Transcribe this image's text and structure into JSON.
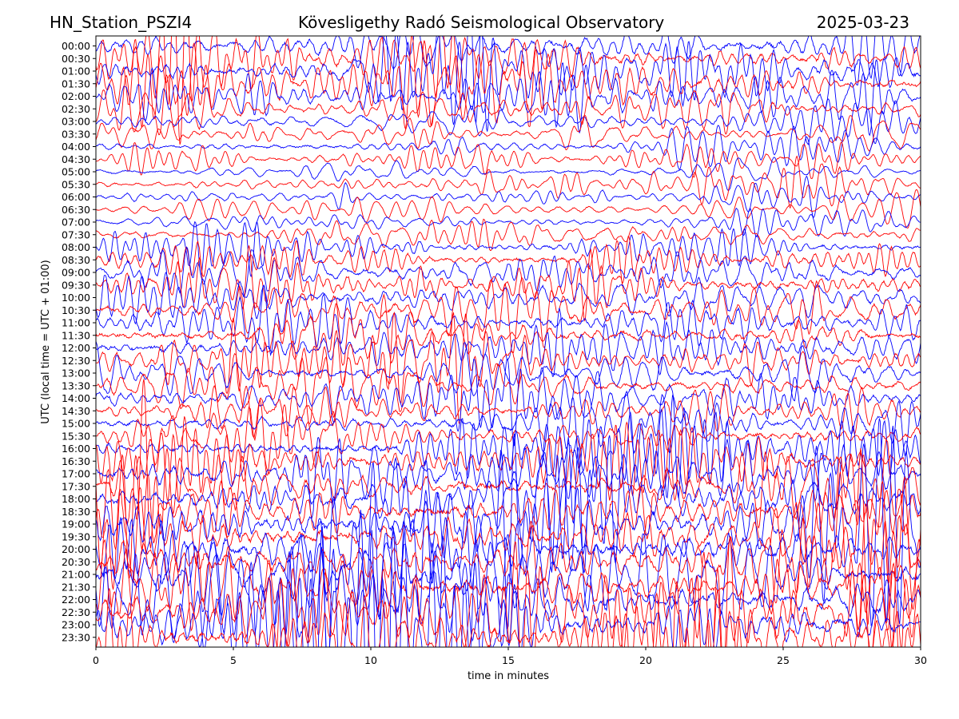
{
  "header": {
    "station": "HN_Station_PSZI4",
    "title": "Kövesligethy Radó Seismological Observatory",
    "date": "2025-03-23"
  },
  "chart_data": {
    "type": "line",
    "title": "Kövesligethy Radó Seismological Observatory",
    "xlabel": "time in minutes",
    "ylabel": "UTC (local time = UTC + 01:00)",
    "xlim": [
      0,
      30
    ],
    "x_ticks": [
      0,
      5,
      10,
      15,
      20,
      25,
      30
    ],
    "y_ticks": [
      "00:00",
      "00:30",
      "01:00",
      "01:30",
      "02:00",
      "02:30",
      "03:00",
      "03:30",
      "04:00",
      "04:30",
      "05:00",
      "05:30",
      "06:00",
      "06:30",
      "07:00",
      "07:30",
      "08:00",
      "08:30",
      "09:00",
      "09:30",
      "10:00",
      "10:30",
      "11:00",
      "11:30",
      "12:00",
      "12:30",
      "13:00",
      "13:30",
      "14:00",
      "14:30",
      "15:00",
      "15:30",
      "16:00",
      "16:30",
      "17:00",
      "17:30",
      "18:00",
      "18:30",
      "19:00",
      "19:30",
      "20:00",
      "20:30",
      "21:00",
      "21:30",
      "22:00",
      "22:30",
      "23:00",
      "23:30"
    ],
    "trace_colors": [
      "#0000ff",
      "#ff0000"
    ],
    "relative_amplitude": [
      0.95,
      0.95,
      0.95,
      0.95,
      0.75,
      0.6,
      0.5,
      0.45,
      0.45,
      0.4,
      0.35,
      0.35,
      0.35,
      0.33,
      0.33,
      0.42,
      0.55,
      0.7,
      0.75,
      0.8,
      0.8,
      0.85,
      0.85,
      0.85,
      0.85,
      0.85,
      0.8,
      0.8,
      0.8,
      0.8,
      0.8,
      0.85,
      0.9,
      1.0,
      1.1,
      1.2,
      1.25,
      1.3,
      1.35,
      1.4,
      1.45,
      1.45,
      1.45,
      1.45,
      1.4,
      1.35,
      1.3,
      1.25
    ],
    "grid": false,
    "legend": "none"
  }
}
